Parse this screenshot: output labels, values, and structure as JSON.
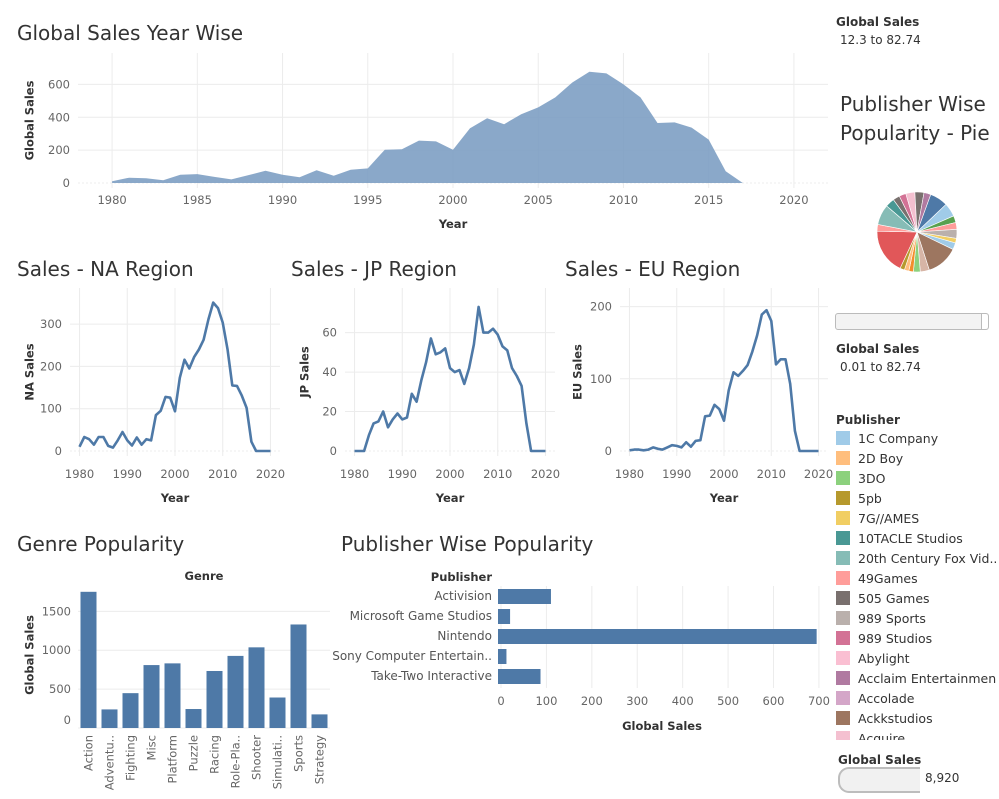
{
  "titles": {
    "global": "Global Sales Year Wise",
    "na": "Sales - NA Region",
    "jp": "Sales - JP Region",
    "eu": "Sales - EU Region",
    "genre": "Genre Popularity",
    "publisher": "Publisher Wise Popularity",
    "pie_line1": "Publisher Wise",
    "pie_line2": "Popularity - Pie"
  },
  "sidebar": {
    "filter1_label": "Global Sales",
    "filter1_range": "12.3 to 82.74",
    "filter2_label": "Global Sales",
    "filter2_range": "0.01 to 82.74",
    "legend_title": "Publisher",
    "legend_items": [
      {
        "label": "1C Company",
        "color": "#a0cbe8"
      },
      {
        "label": "2D Boy",
        "color": "#ffbe7d"
      },
      {
        "label": "3DO",
        "color": "#8cd17d"
      },
      {
        "label": "5pb",
        "color": "#b6992d"
      },
      {
        "label": "7G//AMES",
        "color": "#f1ce63"
      },
      {
        "label": "10TACLE Studios",
        "color": "#499894"
      },
      {
        "label": "20th Century Fox Vid..",
        "color": "#86bcb6"
      },
      {
        "label": "49Games",
        "color": "#ff9d9a"
      },
      {
        "label": "505 Games",
        "color": "#79706e"
      },
      {
        "label": "989 Sports",
        "color": "#bab0ac"
      },
      {
        "label": "989 Studios",
        "color": "#d37295"
      },
      {
        "label": "Abylight",
        "color": "#fabfd2"
      },
      {
        "label": "Acclaim Entertainment",
        "color": "#b07aa1"
      },
      {
        "label": "Accolade",
        "color": "#d4a6c8"
      },
      {
        "label": "Ackkstudios",
        "color": "#9d7660"
      },
      {
        "label": "Acquire",
        "color": "#f4c0d0"
      }
    ],
    "size_label": "Global Sales",
    "size_value": "8,920"
  },
  "chart_data": [
    {
      "id": "global",
      "type": "area",
      "title": "Global Sales Year Wise",
      "xlabel": "Year",
      "ylabel": "Global Sales",
      "xlim": [
        1978,
        2022
      ],
      "ylim": [
        0,
        700
      ],
      "x_ticks": [
        1980,
        1985,
        1990,
        1995,
        2000,
        2005,
        2010,
        2015,
        2020
      ],
      "y_ticks": [
        0,
        200,
        400,
        600
      ],
      "color": "#7a9cc2",
      "x": [
        1980,
        1981,
        1982,
        1983,
        1984,
        1985,
        1986,
        1987,
        1988,
        1989,
        1990,
        1991,
        1992,
        1993,
        1994,
        1995,
        1996,
        1997,
        1998,
        1999,
        2000,
        2001,
        2002,
        2003,
        2004,
        2005,
        2006,
        2007,
        2008,
        2009,
        2010,
        2011,
        2012,
        2013,
        2014,
        2015,
        2016,
        2017,
        2018,
        2019,
        2020
      ],
      "y": [
        11,
        32,
        29,
        17,
        50,
        54,
        37,
        22,
        48,
        74,
        50,
        35,
        77,
        44,
        81,
        89,
        203,
        206,
        258,
        253,
        202,
        333,
        394,
        358,
        419,
        460,
        521,
        612,
        677,
        667,
        600,
        521,
        365,
        369,
        337,
        264,
        71,
        0,
        0,
        0,
        0
      ]
    },
    {
      "id": "na",
      "type": "line",
      "title": "Sales - NA Region",
      "xlabel": "Year",
      "ylabel": "NA Sales",
      "xlim": [
        1978,
        2022
      ],
      "ylim": [
        0,
        350
      ],
      "x_ticks": [
        1980,
        1990,
        2000,
        2010,
        2020
      ],
      "y_ticks": [
        0,
        100,
        200,
        300
      ],
      "color": "#4e79a7",
      "x": [
        1980,
        1981,
        1982,
        1983,
        1984,
        1985,
        1986,
        1987,
        1988,
        1989,
        1990,
        1991,
        1992,
        1993,
        1994,
        1995,
        1996,
        1997,
        1998,
        1999,
        2000,
        2001,
        2002,
        2003,
        2004,
        2005,
        2006,
        2007,
        2008,
        2009,
        2010,
        2011,
        2012,
        2013,
        2014,
        2015,
        2016,
        2017,
        2018,
        2019,
        2020
      ],
      "y": [
        10,
        33,
        28,
        15,
        33,
        33,
        12,
        8,
        25,
        45,
        25,
        13,
        32,
        15,
        28,
        25,
        85,
        95,
        128,
        126,
        94,
        173,
        216,
        195,
        222,
        240,
        263,
        311,
        351,
        338,
        304,
        241,
        155,
        154,
        131,
        102,
        22,
        0,
        0,
        0,
        0
      ]
    },
    {
      "id": "jp",
      "type": "line",
      "title": "Sales - JP Region",
      "xlabel": "Year",
      "ylabel": "JP Sales",
      "xlim": [
        1978,
        2022
      ],
      "ylim": [
        0,
        75
      ],
      "x_ticks": [
        1980,
        1990,
        2000,
        2010,
        2020
      ],
      "y_ticks": [
        0,
        20,
        40,
        60
      ],
      "color": "#4e79a7",
      "x": [
        1980,
        1981,
        1982,
        1983,
        1984,
        1985,
        1986,
        1987,
        1988,
        1989,
        1990,
        1991,
        1992,
        1993,
        1994,
        1995,
        1996,
        1997,
        1998,
        1999,
        2000,
        2001,
        2002,
        2003,
        2004,
        2005,
        2006,
        2007,
        2008,
        2009,
        2010,
        2011,
        2012,
        2013,
        2014,
        2015,
        2016,
        2017,
        2018,
        2019,
        2020
      ],
      "y": [
        0,
        0,
        0,
        8,
        14,
        15,
        20,
        12,
        16,
        19,
        16,
        17,
        29,
        25,
        36,
        45,
        57,
        49,
        50,
        52,
        42,
        40,
        41,
        34,
        42,
        54,
        73,
        60,
        60,
        62,
        59,
        53,
        51,
        42,
        38,
        33,
        14,
        0,
        0,
        0,
        0
      ]
    },
    {
      "id": "eu",
      "type": "line",
      "title": "Sales - EU Region",
      "xlabel": "Year",
      "ylabel": "EU Sales",
      "xlim": [
        1978,
        2022
      ],
      "ylim": [
        0,
        205
      ],
      "x_ticks": [
        1980,
        1990,
        2000,
        2010,
        2020
      ],
      "y_ticks": [
        0,
        100,
        200
      ],
      "color": "#4e79a7",
      "x": [
        1980,
        1981,
        1982,
        1983,
        1984,
        1985,
        1986,
        1987,
        1988,
        1989,
        1990,
        1991,
        1992,
        1993,
        1994,
        1995,
        1996,
        1997,
        1998,
        1999,
        2000,
        2001,
        2002,
        2003,
        2004,
        2005,
        2006,
        2007,
        2008,
        2009,
        2010,
        2011,
        2012,
        2013,
        2014,
        2015,
        2016,
        2017,
        2018,
        2019,
        2020
      ],
      "y": [
        1,
        2,
        2,
        1,
        2,
        5,
        3,
        2,
        5,
        8,
        7,
        5,
        12,
        6,
        14,
        15,
        48,
        49,
        64,
        58,
        42,
        84,
        109,
        104,
        111,
        119,
        138,
        160,
        189,
        195,
        180,
        120,
        127,
        127,
        93,
        28,
        0,
        0,
        0,
        0,
        0
      ]
    },
    {
      "id": "genre",
      "type": "bar",
      "title": "Genre Popularity",
      "header": "Genre",
      "ylabel": "Global Sales",
      "ylim": [
        0,
        1800
      ],
      "y_ticks": [
        0,
        500,
        1000,
        1500
      ],
      "color": "#4e79a7",
      "categories": [
        "Action",
        "Adventu..",
        "Fighting",
        "Misc",
        "Platform",
        "Puzzle",
        "Racing",
        "Role-Pla..",
        "Shooter",
        "Simulati..",
        "Sports",
        "Strategy"
      ],
      "values": [
        1751,
        239,
        448,
        809,
        831,
        244,
        733,
        927,
        1037,
        392,
        1331,
        175
      ]
    },
    {
      "id": "publisher",
      "type": "bar",
      "orientation": "horizontal",
      "title": "Publisher Wise Popularity",
      "header": "Publisher",
      "xlabel": "Global Sales",
      "xlim": [
        0,
        720
      ],
      "x_ticks": [
        0,
        100,
        200,
        300,
        400,
        500,
        600,
        700
      ],
      "color": "#4e79a7",
      "categories": [
        "Activision",
        "Microsoft Game Studios",
        "Nintendo",
        "Sony Computer Entertain..",
        "Take-Two Interactive"
      ],
      "values": [
        110,
        20,
        695,
        12,
        87
      ]
    },
    {
      "id": "pie",
      "type": "pie",
      "title": "Publisher Wise Popularity - Pie",
      "slices": [
        {
          "value": 8,
          "color": "#4e79a7"
        },
        {
          "value": 6,
          "color": "#a0cbe8"
        },
        {
          "value": 3,
          "color": "#59a14f"
        },
        {
          "value": 3,
          "color": "#ff9d9a"
        },
        {
          "value": 4,
          "color": "#bab0ac"
        },
        {
          "value": 2,
          "color": "#f1ce63"
        },
        {
          "value": 3,
          "color": "#a0cbe8"
        },
        {
          "value": 14,
          "color": "#9d7660"
        },
        {
          "value": 4,
          "color": "#d7b5a6"
        },
        {
          "value": 3,
          "color": "#8cd17d"
        },
        {
          "value": 2,
          "color": "#f28e2b"
        },
        {
          "value": 2,
          "color": "#ffbe7d"
        },
        {
          "value": 2,
          "color": "#b6992d"
        },
        {
          "value": 20,
          "color": "#e15759"
        },
        {
          "value": 3,
          "color": "#ff9d9a"
        },
        {
          "value": 9,
          "color": "#86bcb6"
        },
        {
          "value": 4,
          "color": "#499894"
        },
        {
          "value": 3,
          "color": "#79706e"
        },
        {
          "value": 3,
          "color": "#d37295"
        },
        {
          "value": 4,
          "color": "#f4c0d0"
        },
        {
          "value": 4,
          "color": "#79706e"
        },
        {
          "value": 3,
          "color": "#b07aa1"
        }
      ]
    }
  ]
}
